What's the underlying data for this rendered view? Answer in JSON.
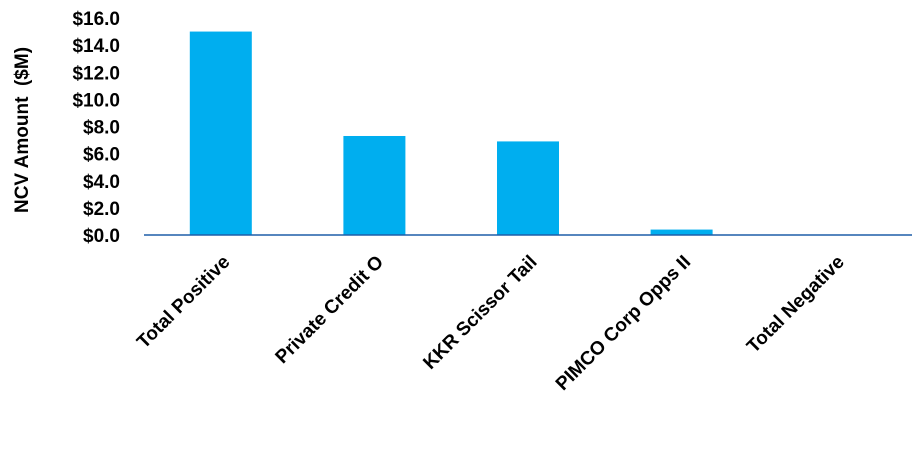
{
  "chart_data": {
    "type": "bar",
    "categories": [
      "Total Positive",
      "Private Credit O",
      "KKR Scissor Tail",
      "PIMCO Corp Opps II",
      "Total Negative"
    ],
    "values": [
      15.0,
      7.3,
      6.9,
      0.4,
      0.0
    ],
    "ylabel": "NCV Amount  ($M)",
    "xlabel": "",
    "ylim": [
      0,
      16
    ],
    "yticks": [
      "$0.0",
      "$2.0",
      "$4.0",
      "$6.0",
      "$8.0",
      "$10.0",
      "$12.0",
      "$14.0",
      "$16.0"
    ],
    "grid": false,
    "colors": {
      "bar": "#00AEEF",
      "axis": "#1F5FA8"
    }
  }
}
